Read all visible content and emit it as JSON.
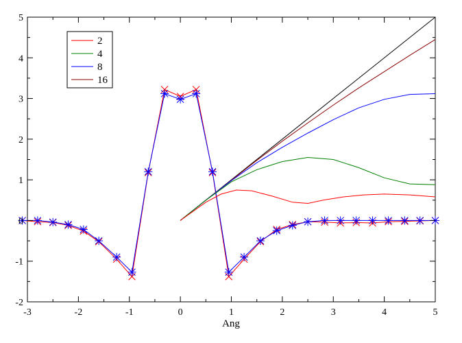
{
  "chart_data": {
    "type": "line",
    "xlabel": "Ang",
    "ylabel": "",
    "xlim": [
      -3,
      5
    ],
    "ylim": [
      -2,
      5
    ],
    "x_ticks": [
      "-3",
      "-2",
      "-1",
      "0",
      "1",
      "2",
      "3",
      "4",
      "5"
    ],
    "y_ticks": [
      "-2",
      "-1",
      "0",
      "1",
      "2",
      "3",
      "4",
      "5"
    ],
    "grid": false,
    "legend_position": "top-left",
    "legend": [
      {
        "label": "2",
        "color": "#ff0000"
      },
      {
        "label": "4",
        "color": "#008000"
      },
      {
        "label": "8",
        "color": "#0000ff"
      },
      {
        "label": "16",
        "color": "#8b0000"
      }
    ],
    "series": [
      {
        "color": "#ff0000",
        "marker": "x",
        "x": [
          -3.1,
          -2.8,
          -2.5,
          -2.2,
          -1.9,
          -1.6,
          -1.25,
          -0.95,
          -0.63,
          -0.31,
          0,
          0.31,
          0.63,
          0.95,
          1.25,
          1.57,
          1.89,
          2.2,
          2.5,
          2.83,
          3.14,
          3.45,
          3.77,
          4.08,
          4.4,
          4.7,
          5.0
        ],
        "y": [
          0,
          -0.03,
          -0.05,
          -0.12,
          -0.26,
          -0.52,
          -0.95,
          -1.38,
          1.18,
          3.22,
          3.05,
          3.22,
          1.18,
          -1.38,
          -0.95,
          -0.52,
          -0.22,
          -0.1,
          -0.03,
          -0.04,
          -0.06,
          -0.05,
          -0.06,
          -0.03,
          -0.02,
          -0.01,
          0
        ]
      },
      {
        "color": "#0000ff",
        "marker": "asterisk",
        "x": [
          -3.1,
          -2.8,
          -2.5,
          -2.2,
          -1.9,
          -1.6,
          -1.25,
          -0.95,
          -0.63,
          -0.31,
          0,
          0.31,
          0.63,
          0.95,
          1.25,
          1.57,
          1.89,
          2.2,
          2.5,
          2.83,
          3.14,
          3.45,
          3.77,
          4.08,
          4.4,
          4.7,
          5.0
        ],
        "y": [
          0,
          0,
          -0.04,
          -0.1,
          -0.22,
          -0.5,
          -0.9,
          -1.27,
          1.2,
          3.12,
          2.98,
          3.12,
          1.2,
          -1.27,
          -0.9,
          -0.5,
          -0.25,
          -0.12,
          -0.03,
          0,
          0,
          0,
          0,
          0,
          0,
          0,
          0
        ]
      },
      {
        "color": "#000000",
        "x": [
          0,
          5
        ],
        "y": [
          0,
          5
        ]
      },
      {
        "color": "#8b0000",
        "x": [
          0,
          0.5,
          1,
          1.5,
          2,
          2.5,
          3,
          3.5,
          4,
          4.5,
          5
        ],
        "y": [
          0,
          0.5,
          0.99,
          1.48,
          1.95,
          2.4,
          2.84,
          3.26,
          3.66,
          4.06,
          4.45
        ]
      },
      {
        "color": "#0000ff",
        "x": [
          0,
          0.5,
          1,
          1.5,
          2,
          2.5,
          3,
          3.5,
          4,
          4.5,
          5
        ],
        "y": [
          0,
          0.5,
          0.98,
          1.42,
          1.8,
          2.15,
          2.48,
          2.77,
          2.98,
          3.1,
          3.12
        ]
      },
      {
        "color": "#008000",
        "x": [
          0,
          0.5,
          1,
          1.5,
          2,
          2.5,
          3,
          3.5,
          4,
          4.5,
          5
        ],
        "y": [
          0,
          0.5,
          0.95,
          1.25,
          1.45,
          1.55,
          1.5,
          1.3,
          1.05,
          0.9,
          0.88
        ]
      },
      {
        "color": "#ff0000",
        "x": [
          0,
          0.5,
          0.8,
          1.1,
          1.4,
          1.8,
          2.2,
          2.5,
          2.8,
          3.2,
          3.6,
          4.0,
          4.5,
          5.0
        ],
        "y": [
          0,
          0.45,
          0.65,
          0.75,
          0.73,
          0.6,
          0.45,
          0.42,
          0.5,
          0.58,
          0.63,
          0.65,
          0.63,
          0.58
        ]
      }
    ]
  }
}
